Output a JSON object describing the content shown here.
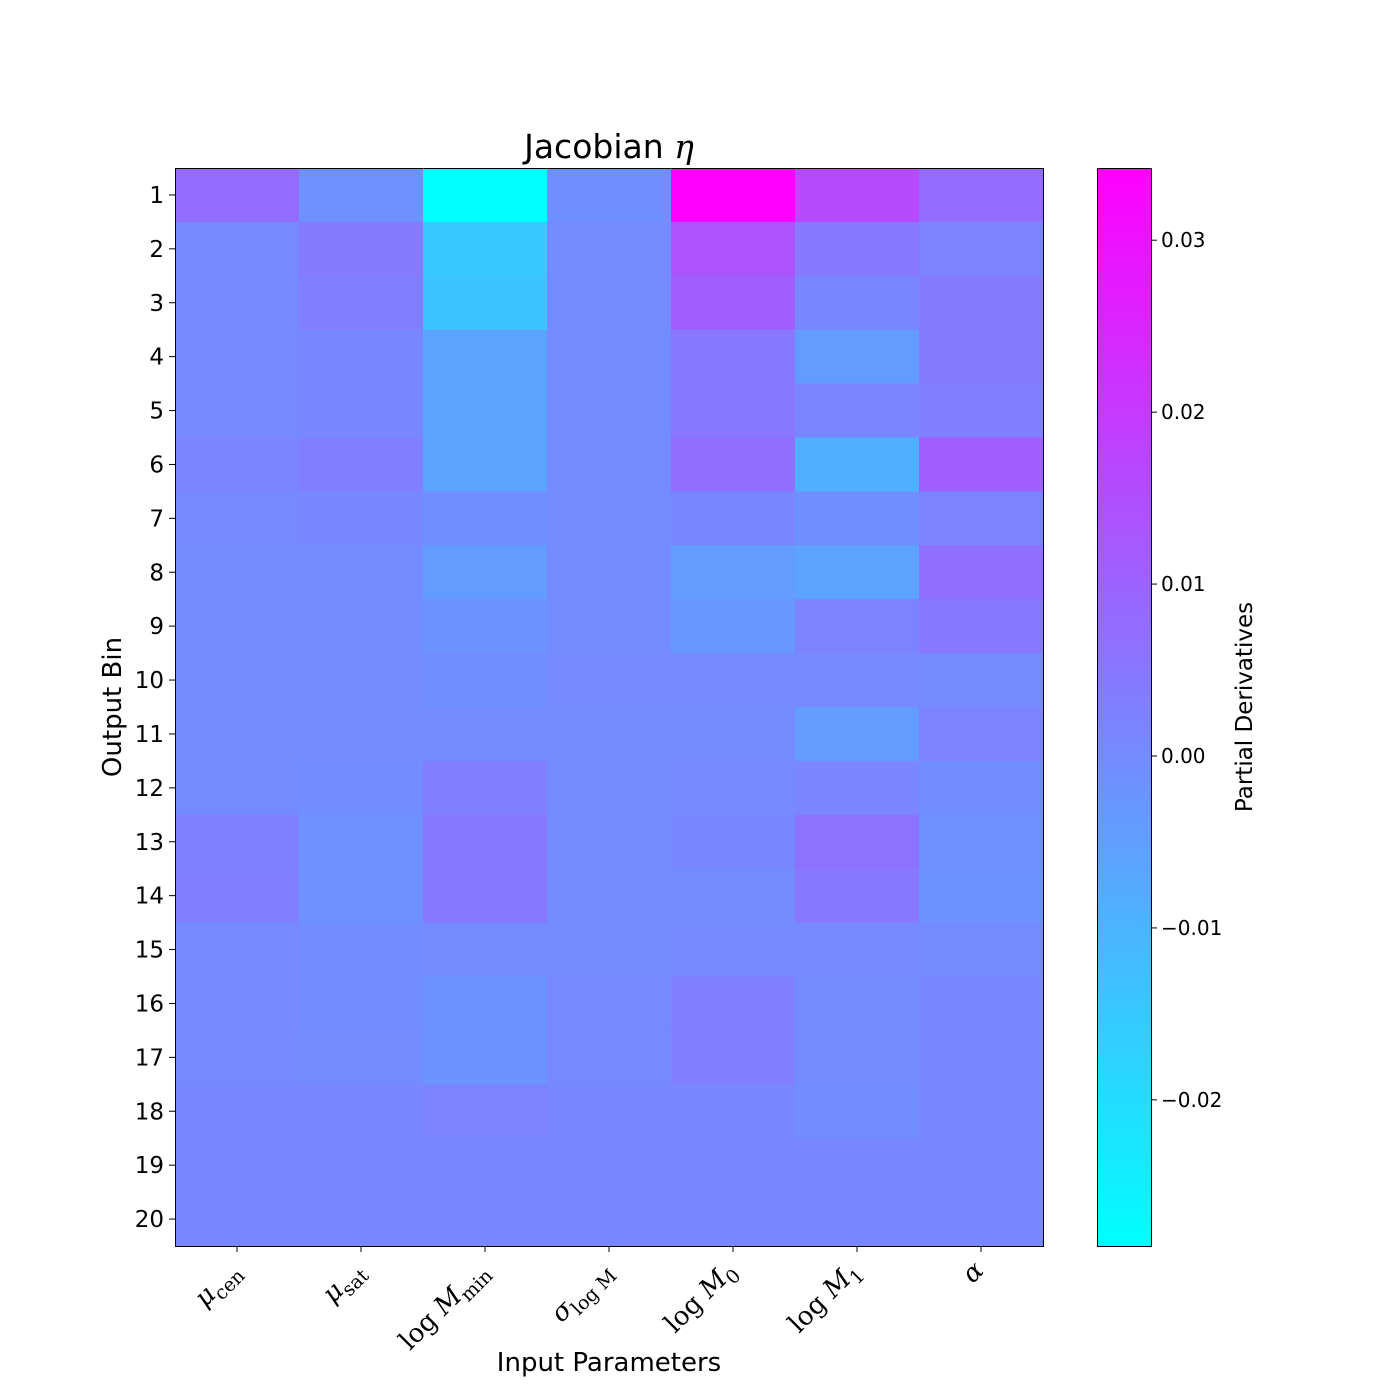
{
  "chart_data": {
    "type": "heatmap",
    "title": "Jacobian η",
    "xlabel": "Input Parameters",
    "ylabel": "Output Bin",
    "colorbar_label": "Partial Derivatives",
    "colormap": "cool",
    "colormap_endpoints": [
      "#00ffff",
      "#ff00ff"
    ],
    "vmin": -0.0285,
    "vmax": 0.0342,
    "colorbar_ticks": [
      "−0.02",
      "−0.01",
      "0.00",
      "0.01",
      "0.02",
      "0.03"
    ],
    "colorbar_tick_values": [
      -0.02,
      -0.01,
      0.0,
      0.01,
      0.02,
      0.03
    ],
    "x_categories": [
      {
        "base": "μ",
        "sub": "cen"
      },
      {
        "base": "μ",
        "sub": "sat"
      },
      {
        "pre": "log",
        "base": "M",
        "sub": "min"
      },
      {
        "base": "σ",
        "sub": "log M"
      },
      {
        "pre": "log",
        "base": "M",
        "sub": "0"
      },
      {
        "pre": "log",
        "base": "M",
        "sub": "1"
      },
      {
        "base": "α",
        "sub": ""
      }
    ],
    "y_categories": [
      "1",
      "2",
      "3",
      "4",
      "5",
      "6",
      "7",
      "8",
      "9",
      "10",
      "11",
      "12",
      "13",
      "14",
      "15",
      "16",
      "17",
      "18",
      "19",
      "20"
    ],
    "values": [
      [
        0.008,
        -0.0015,
        -0.0285,
        -0.001,
        0.0342,
        0.016,
        0.008
      ],
      [
        0.0005,
        0.004,
        -0.015,
        0.0,
        0.014,
        0.005,
        0.002
      ],
      [
        0.0005,
        0.003,
        -0.014,
        0.0,
        0.011,
        0.001,
        0.004
      ],
      [
        0.0005,
        0.001,
        -0.006,
        0.0,
        0.005,
        -0.004,
        0.004
      ],
      [
        0.0005,
        0.001,
        -0.006,
        0.0,
        0.005,
        0.0015,
        0.003
      ],
      [
        0.0015,
        0.003,
        -0.006,
        0.0,
        0.007,
        -0.009,
        0.011
      ],
      [
        0.0005,
        0.001,
        -0.001,
        0.0,
        0.001,
        -0.001,
        0.002
      ],
      [
        0.0,
        0.0,
        -0.004,
        0.0,
        -0.004,
        -0.006,
        0.007
      ],
      [
        0.0,
        0.0,
        -0.002,
        0.0,
        -0.003,
        0.002,
        0.005
      ],
      [
        0.0,
        0.0,
        -0.001,
        0.0005,
        0.0005,
        0.0005,
        0.0
      ],
      [
        0.0,
        0.0,
        0.0,
        0.0,
        0.0,
        -0.004,
        0.002
      ],
      [
        0.0,
        -0.0005,
        0.003,
        0.0,
        0.0005,
        0.0015,
        -0.0005
      ],
      [
        0.0025,
        -0.0015,
        0.005,
        0.0,
        0.001,
        0.006,
        -0.0015
      ],
      [
        0.003,
        -0.0015,
        0.005,
        0.0,
        0.0,
        0.005,
        -0.002
      ],
      [
        0.0005,
        -0.0005,
        0.0,
        0.0,
        0.0005,
        0.0005,
        0.0
      ],
      [
        0.0005,
        -0.0005,
        -0.002,
        0.0005,
        0.003,
        0.0,
        0.001
      ],
      [
        0.0005,
        0.0,
        -0.002,
        0.0005,
        0.003,
        0.0,
        0.001
      ],
      [
        0.001,
        0.001,
        0.002,
        0.001,
        0.001,
        -0.0005,
        0.001
      ],
      [
        0.001,
        0.001,
        0.001,
        0.001,
        0.001,
        0.001,
        0.001
      ],
      [
        0.001,
        0.001,
        0.001,
        0.001,
        0.001,
        0.001,
        0.001
      ]
    ]
  }
}
